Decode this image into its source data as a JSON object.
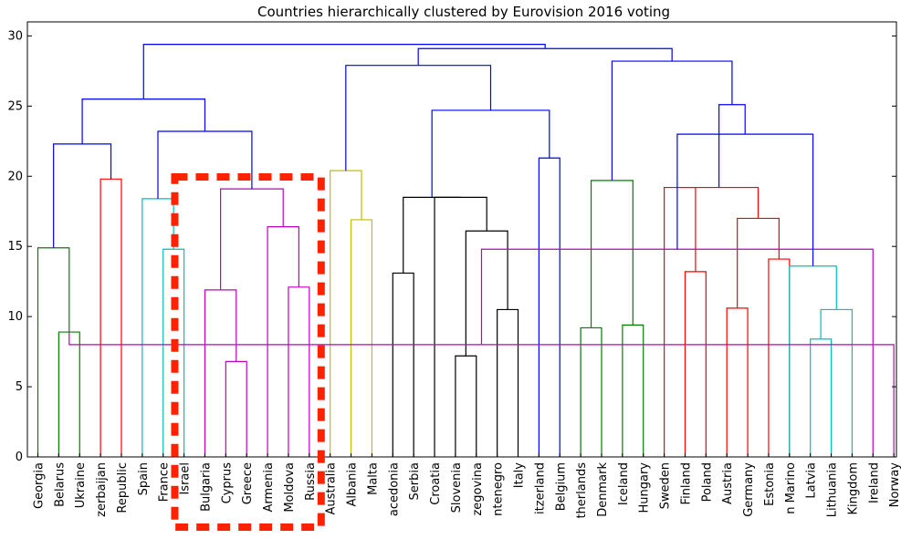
{
  "chart_data": {
    "type": "dendrogram",
    "title": "Countries hierarchically clustered by Eurovision 2016 voting",
    "ylim": [
      0,
      31
    ],
    "y_ticks": [
      0,
      5,
      10,
      15,
      20,
      25,
      30
    ],
    "leaf_labels": [
      "Georgia",
      "Belarus",
      "Ukraine",
      "zerbaijan",
      "Republic",
      "Spain",
      "France",
      "Israel",
      "Bulgaria",
      "Cyprus",
      "Greece",
      "Armenia",
      "Moldova",
      "Russia",
      "Australia",
      "Albania",
      "Malta",
      "acedonia",
      "Serbia",
      "Croatia",
      "Slovenia",
      "zegovina",
      "ntenegro",
      "Italy",
      "itzerland",
      "Belgium",
      "therlands",
      "Denmark",
      "Iceland",
      "Hungary",
      "Sweden",
      "Finland",
      "Poland",
      "Austria",
      "Germany",
      "Estonia",
      "n Marino",
      "Latvia",
      "Lithuania",
      "Kingdom",
      "Ireland",
      "Norway"
    ],
    "merges": [
      {
        "left": 1,
        "right": 2,
        "height": 8.9,
        "color": "#008000"
      },
      {
        "left": 0,
        "right": 42,
        "height": 14.9,
        "color": "#008000"
      },
      {
        "left": 3,
        "right": 4,
        "height": 19.8,
        "color": "#ff0000"
      },
      {
        "left": 43,
        "right": 44,
        "height": 22.3,
        "color": "#0000ff"
      },
      {
        "left": 6,
        "right": 7,
        "height": 14.8,
        "color": "#00bfbf"
      },
      {
        "left": 5,
        "right": 46,
        "height": 18.4,
        "color": "#00bfbf"
      },
      {
        "left": 9,
        "right": 10,
        "height": 6.8,
        "color": "#bf00bf"
      },
      {
        "left": 8,
        "right": 48,
        "height": 11.9,
        "color": "#bf00bf"
      },
      {
        "left": 12,
        "right": 13,
        "height": 12.1,
        "color": "#bf00bf"
      },
      {
        "left": 11,
        "right": 50,
        "height": 16.4,
        "color": "#bf00bf"
      },
      {
        "left": 49,
        "right": 51,
        "height": 19.1,
        "color": "#bf00bf"
      },
      {
        "left": 47,
        "right": 52,
        "height": 23.2,
        "color": "#0000ff"
      },
      {
        "left": 45,
        "right": 53,
        "height": 25.5,
        "color": "#0000ff"
      },
      {
        "left": 15,
        "right": 16,
        "height": 16.9,
        "color": "#bfbf00"
      },
      {
        "left": 14,
        "right": 55,
        "height": 20.4,
        "color": "#bfbf00"
      },
      {
        "left": 17,
        "right": 18,
        "height": 13.1,
        "color": "#000000"
      },
      {
        "left": 20,
        "right": 21,
        "height": 7.2,
        "color": "#000000"
      },
      {
        "left": 22,
        "right": 23,
        "height": 10.5,
        "color": "#000000"
      },
      {
        "left": 58,
        "right": 59,
        "height": 16.1,
        "color": "#000000"
      },
      {
        "left": 19,
        "right": 60,
        "height": 18.5,
        "color": "#000000"
      },
      {
        "left": 57,
        "right": 61,
        "height": 18.5,
        "color": "#000000"
      },
      {
        "left": 24,
        "right": 25,
        "height": 21.3,
        "color": "#0000ff"
      },
      {
        "left": 62,
        "right": 63,
        "height": 24.7,
        "color": "#0000ff"
      },
      {
        "left": 56,
        "right": 64,
        "height": 27.9,
        "color": "#0000ff"
      },
      {
        "left": 26,
        "right": 27,
        "height": 9.2,
        "color": "#008000"
      },
      {
        "left": 28,
        "right": 29,
        "height": 9.4,
        "color": "#008000"
      },
      {
        "left": 66,
        "right": 67,
        "height": 19.7,
        "color": "#008000"
      },
      {
        "left": 31,
        "right": 32,
        "height": 13.2,
        "color": "#ff0000"
      },
      {
        "left": 30,
        "right": 69,
        "height": 19.2,
        "color": "#ff0000"
      },
      {
        "left": 33,
        "right": 34,
        "height": 10.6,
        "color": "#ff0000"
      },
      {
        "left": 35,
        "right": 36,
        "height": 14.1,
        "color": "#ff0000"
      },
      {
        "left": 71,
        "right": 72,
        "height": 17.0,
        "color": "#ff0000"
      },
      {
        "left": 70,
        "right": 73,
        "height": 19.2,
        "color": "#ff0000"
      },
      {
        "left": 37,
        "right": 38,
        "height": 8.4,
        "color": "#00bfbf"
      },
      {
        "left": 39,
        "right": 75,
        "height": 10.5,
        "color": "#00bfbf"
      },
      {
        "left": 36,
        "right": 76,
        "height": 13.6,
        "color": "#00bfbf"
      },
      {
        "left": 41,
        "right": 42,
        "height": 8.0,
        "color": "#bf00bf"
      },
      {
        "left": 40,
        "right": 78,
        "height": 14.8,
        "color": "#bf00bf"
      },
      {
        "left": 77,
        "right": 79,
        "height": 23.0,
        "color": "#0000ff"
      },
      {
        "left": 74,
        "right": 80,
        "height": 25.1,
        "color": "#0000ff"
      },
      {
        "left": 68,
        "right": 81,
        "height": 28.2,
        "color": "#0000ff"
      },
      {
        "left": 65,
        "right": 82,
        "height": 29.1,
        "color": "#0000ff"
      },
      {
        "left": 54,
        "right": 83,
        "height": 29.4,
        "color": "#0000ff"
      }
    ],
    "highlight": {
      "from_leaf": "Bulgaria",
      "to_leaf": "Russia",
      "color": "#ff2200",
      "style": "dashed"
    }
  }
}
